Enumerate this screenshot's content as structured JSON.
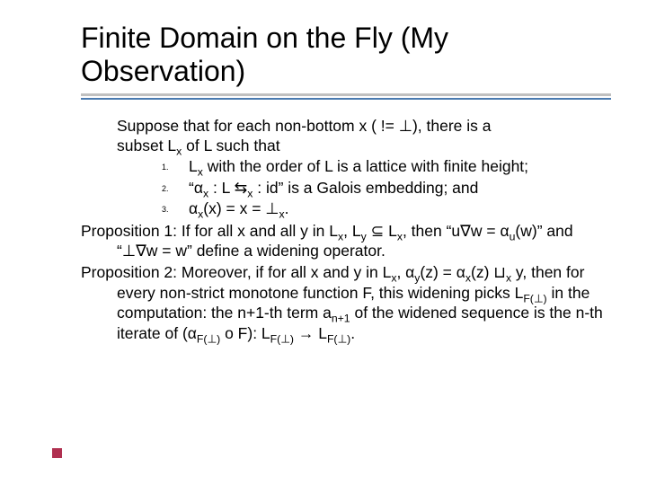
{
  "slide": {
    "title": "Finite Domain on the Fly (My Observation)",
    "background_color": "#ffffff",
    "text_color": "#000000",
    "rule_color_top": "#c0c0c0",
    "rule_color_bottom": "#4a7ab0",
    "accent_square_color": "#b03050",
    "font_family": "Comic Sans MS",
    "title_fontsize": 32,
    "body_fontsize": 17.5,
    "sub_number_fontsize": 9,
    "intro_line1": "Suppose that for each non-bottom x ( != ⊥), there is a",
    "intro_line2": "subset L",
    "intro_line2b": " of L such that",
    "items": [
      {
        "num": "1.",
        "text_a": "L",
        "text_b": " with the order of L is a lattice with finite height;"
      },
      {
        "num": "2.",
        "text_a": "“α",
        "text_b": " : L ⇆",
        "text_c": " : id” is a Galois embedding; and"
      },
      {
        "num": "3.",
        "text_a": "α",
        "text_b": "(x) = x = ⊥",
        "text_c": "."
      }
    ],
    "prop1_a": "Proposition 1: If for all x and all y in L",
    "prop1_b": ",  L",
    "prop1_c": " ⊆ L",
    "prop1_d": ", then “u∇w = α",
    "prop1_e": "(w)” and “⊥∇w = w” define a widening operator.",
    "prop2_a": "Proposition 2: Moreover, if for all x and y in L",
    "prop2_b": ", α",
    "prop2_c": "(z) = α",
    "prop2_d": "(z) ⊔",
    "prop2_e": " y, then for every non-strict monotone function F, this widening picks L",
    "prop2_f": " in the computation: the n+1-th term a",
    "prop2_g": " of the widened sequence is the n-th iterate of (α",
    "prop2_h": " o F): L",
    "prop2_i": " → L",
    "prop2_j": ".",
    "sub_x": "x",
    "sub_y": "y",
    "sub_u": "u",
    "sub_n1": "n+1",
    "sub_Fbot": "F(⊥)"
  }
}
